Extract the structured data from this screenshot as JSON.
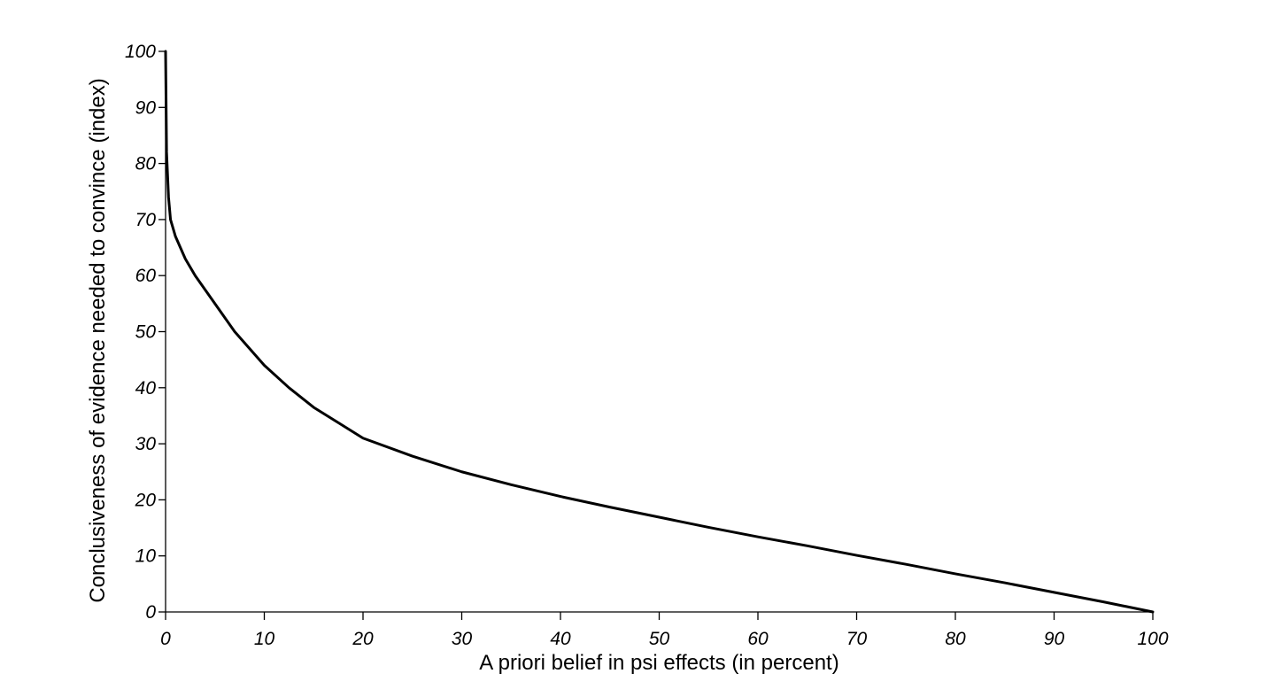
{
  "chart_data": {
    "type": "line",
    "title": "",
    "xlabel": "A priori belief in psi effects (in percent)",
    "ylabel": "Conclusiveness of evidence needed to convince (index)",
    "xlim": [
      0,
      100
    ],
    "ylim": [
      0,
      100
    ],
    "xticks": [
      "0",
      "10",
      "20",
      "30",
      "40",
      "50",
      "60",
      "70",
      "80",
      "90",
      "100"
    ],
    "yticks": [
      "0",
      "10",
      "20",
      "30",
      "40",
      "50",
      "60",
      "70",
      "80",
      "90",
      "100"
    ],
    "grid": false,
    "legend": "none",
    "series": [
      {
        "color": "#000000",
        "x": [
          0,
          0.1,
          0.3,
          0.5,
          1,
          2,
          3,
          5,
          7,
          10,
          12.5,
          15,
          20,
          25,
          30,
          35,
          40,
          45,
          50,
          55,
          60,
          65,
          70,
          75,
          80,
          85,
          90,
          95,
          100
        ],
        "y": [
          100,
          82,
          74,
          70,
          67,
          63,
          60,
          55,
          50,
          44,
          40,
          36.5,
          31,
          27.8,
          25,
          22.7,
          20.6,
          18.7,
          16.9,
          15.1,
          13.4,
          11.8,
          10.1,
          8.5,
          6.8,
          5.2,
          3.5,
          1.8,
          0
        ]
      }
    ]
  }
}
